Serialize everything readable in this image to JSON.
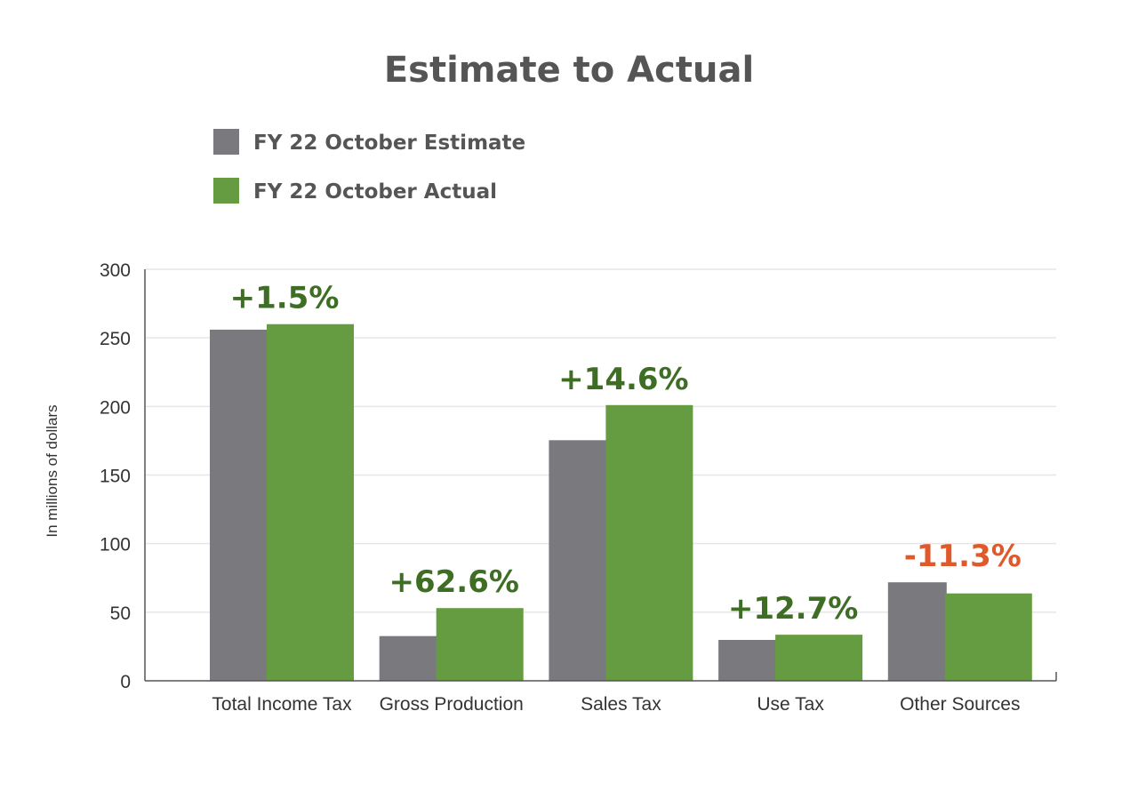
{
  "chart_data": {
    "type": "bar",
    "title": "Estimate to Actual",
    "ylabel": "In millions of dollars",
    "xlabel": "",
    "ylim": [
      0,
      300
    ],
    "yticks": [
      0,
      50,
      100,
      150,
      200,
      250,
      300
    ],
    "grid": true,
    "legend_placement": "top-left",
    "categories": [
      "Total Income Tax",
      "Gross Production",
      "Sales Tax",
      "Use Tax",
      "Other Sources"
    ],
    "series": [
      {
        "name": "FY 22 October Estimate",
        "color": "#7a7a7e",
        "values": [
          256,
          32.6,
          175.4,
          29.8,
          71.8
        ]
      },
      {
        "name": "FY 22 October Actual",
        "color": "#669c41",
        "values": [
          260,
          53,
          201,
          33.6,
          63.7
        ]
      }
    ],
    "annotations": [
      "+1.5%",
      "+62.6%",
      "+14.6%",
      "+12.7%",
      "-11.3%"
    ],
    "annotation_colors": {
      "positive": "#3d6e24",
      "negative": "#e0592a"
    }
  }
}
